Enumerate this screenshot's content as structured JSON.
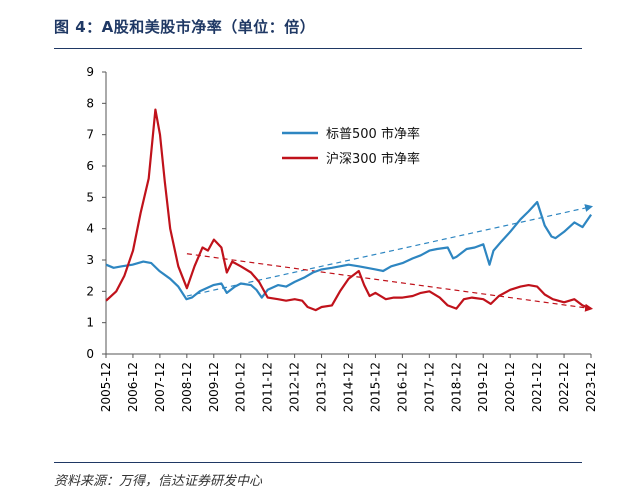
{
  "title": "图 4：A股和美股市净率（单位：倍）",
  "source": "资料来源：万得，信达证券研发中心",
  "colors": {
    "sp500": "#2e86c1",
    "hs300": "#c0121b",
    "title": "#1f3864"
  },
  "chart_data": {
    "type": "line",
    "title": "",
    "xlabel": "",
    "ylabel": "",
    "ylim": [
      0,
      9
    ],
    "yticks": [
      "0",
      "1",
      "2",
      "3",
      "4",
      "5",
      "6",
      "7",
      "8",
      "9"
    ],
    "xlim": [
      2005.917,
      2023.917
    ],
    "xticks": [
      {
        "label": "2005-12",
        "x": 2005.917
      },
      {
        "label": "2006-12",
        "x": 2006.917
      },
      {
        "label": "2007-12",
        "x": 2007.917
      },
      {
        "label": "2008-12",
        "x": 2008.917
      },
      {
        "label": "2009-12",
        "x": 2009.917
      },
      {
        "label": "2010-12",
        "x": 2010.917
      },
      {
        "label": "2011-12",
        "x": 2011.917
      },
      {
        "label": "2012-12",
        "x": 2012.917
      },
      {
        "label": "2013-12",
        "x": 2013.917
      },
      {
        "label": "2014-12",
        "x": 2014.917
      },
      {
        "label": "2015-12",
        "x": 2015.917
      },
      {
        "label": "2016-12",
        "x": 2016.917
      },
      {
        "label": "2017-12",
        "x": 2017.917
      },
      {
        "label": "2018-12",
        "x": 2018.917
      },
      {
        "label": "2019-12",
        "x": 2019.917
      },
      {
        "label": "2020-12",
        "x": 2020.917
      },
      {
        "label": "2021-12",
        "x": 2021.917
      },
      {
        "label": "2022-12",
        "x": 2022.917
      },
      {
        "label": "2023-12",
        "x": 2023.917
      }
    ],
    "legend_position": "top-center",
    "grid": false,
    "series": [
      {
        "name": "标普500  市净率",
        "color": "#2e86c1",
        "points": [
          [
            2005.92,
            2.85
          ],
          [
            2006.2,
            2.75
          ],
          [
            2006.5,
            2.8
          ],
          [
            2006.9,
            2.85
          ],
          [
            2007.3,
            2.95
          ],
          [
            2007.6,
            2.9
          ],
          [
            2007.9,
            2.65
          ],
          [
            2008.3,
            2.4
          ],
          [
            2008.6,
            2.15
          ],
          [
            2008.9,
            1.75
          ],
          [
            2009.1,
            1.8
          ],
          [
            2009.4,
            2.0
          ],
          [
            2009.9,
            2.2
          ],
          [
            2010.2,
            2.25
          ],
          [
            2010.4,
            1.95
          ],
          [
            2010.7,
            2.15
          ],
          [
            2010.92,
            2.25
          ],
          [
            2011.3,
            2.2
          ],
          [
            2011.5,
            2.05
          ],
          [
            2011.7,
            1.8
          ],
          [
            2011.92,
            2.05
          ],
          [
            2012.3,
            2.2
          ],
          [
            2012.6,
            2.15
          ],
          [
            2012.92,
            2.3
          ],
          [
            2013.3,
            2.45
          ],
          [
            2013.6,
            2.6
          ],
          [
            2013.92,
            2.7
          ],
          [
            2014.3,
            2.75
          ],
          [
            2014.6,
            2.8
          ],
          [
            2014.92,
            2.85
          ],
          [
            2015.3,
            2.8
          ],
          [
            2015.6,
            2.75
          ],
          [
            2015.92,
            2.7
          ],
          [
            2016.2,
            2.65
          ],
          [
            2016.5,
            2.8
          ],
          [
            2016.92,
            2.9
          ],
          [
            2017.3,
            3.05
          ],
          [
            2017.6,
            3.15
          ],
          [
            2017.92,
            3.3
          ],
          [
            2018.2,
            3.35
          ],
          [
            2018.6,
            3.4
          ],
          [
            2018.8,
            3.05
          ],
          [
            2018.92,
            3.1
          ],
          [
            2019.3,
            3.35
          ],
          [
            2019.6,
            3.4
          ],
          [
            2019.92,
            3.5
          ],
          [
            2020.15,
            2.85
          ],
          [
            2020.3,
            3.3
          ],
          [
            2020.6,
            3.6
          ],
          [
            2020.92,
            3.9
          ],
          [
            2021.3,
            4.3
          ],
          [
            2021.6,
            4.55
          ],
          [
            2021.92,
            4.85
          ],
          [
            2022.2,
            4.1
          ],
          [
            2022.45,
            3.75
          ],
          [
            2022.6,
            3.7
          ],
          [
            2022.92,
            3.9
          ],
          [
            2023.3,
            4.2
          ],
          [
            2023.6,
            4.05
          ],
          [
            2023.92,
            4.45
          ]
        ]
      },
      {
        "name": "沪深300  市净率",
        "color": "#c0121b",
        "points": [
          [
            2005.92,
            1.7
          ],
          [
            2006.3,
            2.0
          ],
          [
            2006.6,
            2.5
          ],
          [
            2006.92,
            3.3
          ],
          [
            2007.2,
            4.5
          ],
          [
            2007.5,
            5.6
          ],
          [
            2007.75,
            7.8
          ],
          [
            2007.92,
            7.0
          ],
          [
            2008.1,
            5.5
          ],
          [
            2008.3,
            4.0
          ],
          [
            2008.6,
            2.8
          ],
          [
            2008.92,
            2.1
          ],
          [
            2009.2,
            2.8
          ],
          [
            2009.5,
            3.4
          ],
          [
            2009.7,
            3.3
          ],
          [
            2009.92,
            3.65
          ],
          [
            2010.2,
            3.4
          ],
          [
            2010.4,
            2.6
          ],
          [
            2010.6,
            2.95
          ],
          [
            2010.92,
            2.8
          ],
          [
            2011.3,
            2.6
          ],
          [
            2011.6,
            2.3
          ],
          [
            2011.92,
            1.8
          ],
          [
            2012.3,
            1.75
          ],
          [
            2012.6,
            1.7
          ],
          [
            2012.92,
            1.75
          ],
          [
            2013.2,
            1.7
          ],
          [
            2013.4,
            1.5
          ],
          [
            2013.7,
            1.4
          ],
          [
            2013.92,
            1.5
          ],
          [
            2014.3,
            1.55
          ],
          [
            2014.6,
            2.0
          ],
          [
            2014.92,
            2.4
          ],
          [
            2015.3,
            2.65
          ],
          [
            2015.5,
            2.2
          ],
          [
            2015.7,
            1.85
          ],
          [
            2015.92,
            1.95
          ],
          [
            2016.3,
            1.75
          ],
          [
            2016.6,
            1.8
          ],
          [
            2016.92,
            1.8
          ],
          [
            2017.3,
            1.85
          ],
          [
            2017.6,
            1.95
          ],
          [
            2017.92,
            2.0
          ],
          [
            2018.3,
            1.8
          ],
          [
            2018.6,
            1.55
          ],
          [
            2018.92,
            1.45
          ],
          [
            2019.2,
            1.75
          ],
          [
            2019.5,
            1.8
          ],
          [
            2019.92,
            1.75
          ],
          [
            2020.2,
            1.6
          ],
          [
            2020.5,
            1.85
          ],
          [
            2020.92,
            2.05
          ],
          [
            2021.3,
            2.15
          ],
          [
            2021.6,
            2.2
          ],
          [
            2021.92,
            2.15
          ],
          [
            2022.2,
            1.9
          ],
          [
            2022.5,
            1.75
          ],
          [
            2022.92,
            1.65
          ],
          [
            2023.3,
            1.75
          ],
          [
            2023.6,
            1.55
          ],
          [
            2023.92,
            1.45
          ]
        ]
      }
    ],
    "trendlines": [
      {
        "name": "sp500-trend",
        "color": "#2e86c1",
        "from": [
          2008.92,
          1.85
        ],
        "to": [
          2023.92,
          4.7
        ]
      },
      {
        "name": "hs300-trend",
        "color": "#c0121b",
        "from": [
          2008.92,
          3.2
        ],
        "to": [
          2023.92,
          1.45
        ]
      }
    ]
  }
}
